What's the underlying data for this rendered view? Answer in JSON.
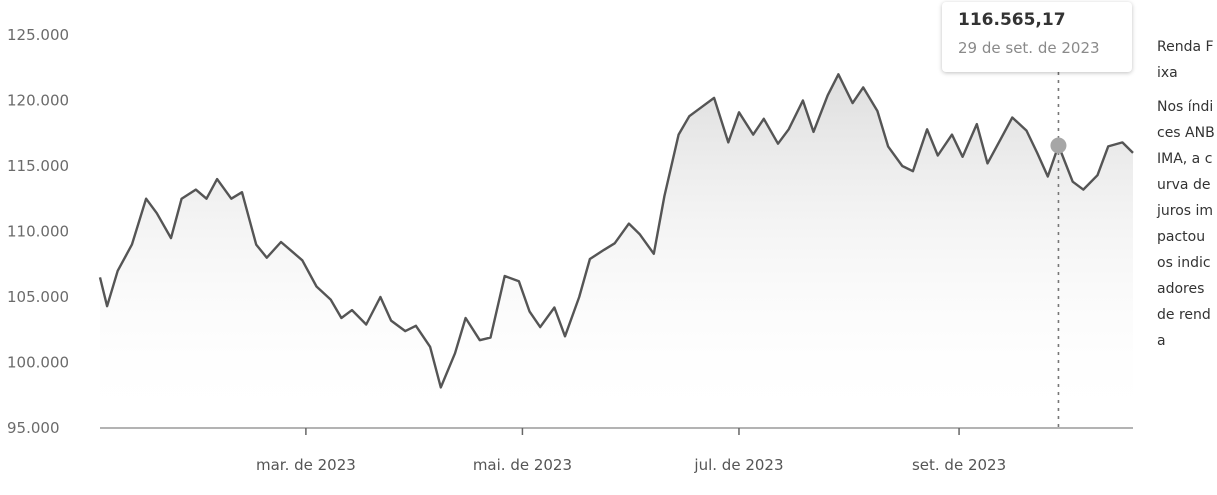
{
  "chart_data": {
    "type": "area",
    "title": "",
    "xlabel": "",
    "ylabel": "",
    "ylim": [
      95000,
      125000
    ],
    "yticks": [
      "125.000",
      "120.000",
      "115.000",
      "110.000",
      "105.000",
      "100.000",
      "95.000"
    ],
    "ytick_values": [
      125000,
      120000,
      115000,
      110000,
      105000,
      100000,
      95000
    ],
    "xticks": [
      "mar. de 2023",
      "mai. de 2023",
      "jul. de 2023",
      "set. de 2023"
    ],
    "xtick_dates": [
      "2023-03-01",
      "2023-05-01",
      "2023-07-01",
      "2023-09-01"
    ],
    "x_range": [
      "2023-01-02",
      "2023-10-20"
    ],
    "line_color": "#555555",
    "fill_color": "#e0e0e0",
    "marker_color": "#a6a6a6",
    "series": [
      {
        "x": [
          "2023-01-02",
          "2023-01-04",
          "2023-01-07",
          "2023-01-11",
          "2023-01-15",
          "2023-01-18",
          "2023-01-22",
          "2023-01-25",
          "2023-01-29",
          "2023-02-01",
          "2023-02-04",
          "2023-02-08",
          "2023-02-11",
          "2023-02-15",
          "2023-02-18",
          "2023-02-22",
          "2023-02-25",
          "2023-02-28",
          "2023-03-04",
          "2023-03-08",
          "2023-03-11",
          "2023-03-14",
          "2023-03-18",
          "2023-03-22",
          "2023-03-25",
          "2023-03-29",
          "2023-04-01",
          "2023-04-05",
          "2023-04-08",
          "2023-04-12",
          "2023-04-15",
          "2023-04-19",
          "2023-04-22",
          "2023-04-26",
          "2023-04-30",
          "2023-05-03",
          "2023-05-06",
          "2023-05-10",
          "2023-05-13",
          "2023-05-17",
          "2023-05-20",
          "2023-05-24",
          "2023-05-27",
          "2023-05-31",
          "2023-06-03",
          "2023-06-07",
          "2023-06-10",
          "2023-06-14",
          "2023-06-17",
          "2023-06-21",
          "2023-06-24",
          "2023-06-28",
          "2023-07-01",
          "2023-07-05",
          "2023-07-08",
          "2023-07-12",
          "2023-07-15",
          "2023-07-19",
          "2023-07-22",
          "2023-07-26",
          "2023-07-29",
          "2023-08-02",
          "2023-08-05",
          "2023-08-09",
          "2023-08-12",
          "2023-08-16",
          "2023-08-19",
          "2023-08-23",
          "2023-08-26",
          "2023-08-30",
          "2023-09-02",
          "2023-09-06",
          "2023-09-09",
          "2023-09-13",
          "2023-09-16",
          "2023-09-20",
          "2023-09-23",
          "2023-09-26",
          "2023-09-29",
          "2023-10-03",
          "2023-10-06",
          "2023-10-10",
          "2023-10-13",
          "2023-10-17",
          "2023-10-20"
        ],
        "y": [
          106500,
          104300,
          107000,
          109000,
          112500,
          111400,
          109500,
          112500,
          113200,
          112500,
          114000,
          112500,
          113000,
          109000,
          108000,
          109200,
          108500,
          107800,
          105800,
          104800,
          103400,
          104000,
          102900,
          105000,
          103200,
          102400,
          102800,
          101200,
          98100,
          100700,
          103400,
          101700,
          101900,
          106600,
          106200,
          103900,
          102700,
          104200,
          102000,
          105000,
          107900,
          108600,
          109100,
          110600,
          109800,
          108300,
          112700,
          117400,
          118800,
          119600,
          120200,
          116800,
          119100,
          117400,
          118600,
          116700,
          117800,
          120000,
          117600,
          120400,
          122000,
          119800,
          121000,
          119200,
          116500,
          115000,
          114600,
          117800,
          115800,
          117400,
          115700,
          118200,
          115200,
          117200,
          118700,
          117700,
          116000,
          114200,
          116565,
          113800,
          113200,
          114300,
          116500,
          116800,
          116000
        ]
      }
    ],
    "highlight": {
      "x": "2023-09-29",
      "y": 116565.17,
      "value_label": "116.565,17",
      "date_label": "29 de set. de 2023"
    }
  },
  "sidebar": {
    "title": "Renda Fixa",
    "body": "Nos índices ANBIMA, a curva de juros impactou os indicadores de renda"
  }
}
